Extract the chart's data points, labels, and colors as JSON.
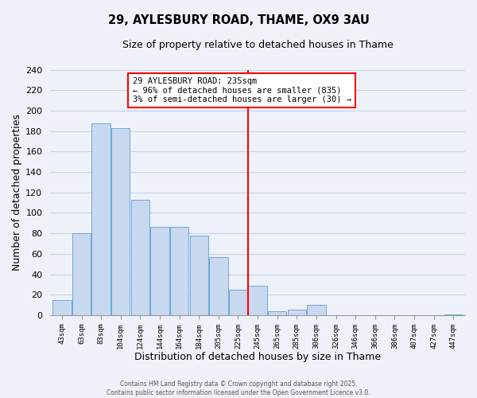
{
  "title": "29, AYLESBURY ROAD, THAME, OX9 3AU",
  "subtitle": "Size of property relative to detached houses in Thame",
  "xlabel": "Distribution of detached houses by size in Thame",
  "ylabel": "Number of detached properties",
  "bin_labels": [
    "43sqm",
    "63sqm",
    "83sqm",
    "104sqm",
    "124sqm",
    "144sqm",
    "164sqm",
    "184sqm",
    "205sqm",
    "225sqm",
    "245sqm",
    "265sqm",
    "285sqm",
    "306sqm",
    "326sqm",
    "346sqm",
    "366sqm",
    "386sqm",
    "407sqm",
    "427sqm",
    "447sqm"
  ],
  "bar_values": [
    15,
    80,
    188,
    183,
    113,
    86,
    86,
    78,
    57,
    25,
    29,
    4,
    5,
    10,
    0,
    0,
    0,
    0,
    0,
    0,
    1
  ],
  "bar_color": "#c8d8f0",
  "bar_edge_color": "#6aaad4",
  "property_line_color": "red",
  "annotation_text": "29 AYLESBURY ROAD: 235sqm\n← 96% of detached houses are smaller (835)\n3% of semi-detached houses are larger (30) →",
  "annotation_box_color": "white",
  "annotation_box_edge_color": "red",
  "ylim": [
    0,
    240
  ],
  "yticks": [
    0,
    20,
    40,
    60,
    80,
    100,
    120,
    140,
    160,
    180,
    200,
    220,
    240
  ],
  "footer_line1": "Contains HM Land Registry data © Crown copyright and database right 2025.",
  "footer_line2": "Contains public sector information licensed under the Open Government Licence v3.0.",
  "grid_color": "#c8d4e8",
  "background_color": "#eef2f8"
}
